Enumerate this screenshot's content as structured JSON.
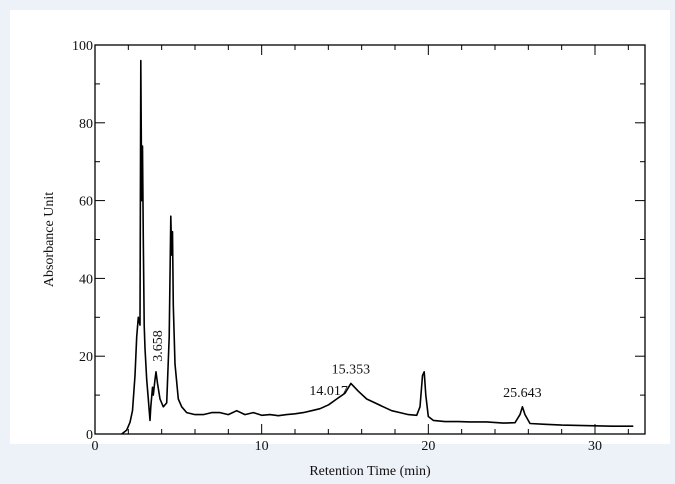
{
  "chart_data": {
    "type": "line",
    "title": "",
    "xlabel": "Retention Time (min)",
    "ylabel": "Absorbance Unit",
    "xlim": [
      0,
      33
    ],
    "ylim": [
      0,
      100
    ],
    "x_ticks": [
      0,
      10,
      20,
      30
    ],
    "y_ticks": [
      0,
      20,
      40,
      60,
      80,
      100
    ],
    "grid": false,
    "legend": "none",
    "line_color": "#000000",
    "background_color": "#ffffff",
    "series": [
      {
        "x": [
          1.6,
          1.9,
          2.1,
          2.25,
          2.4,
          2.5,
          2.6,
          2.7,
          2.75,
          2.8,
          2.85,
          2.9,
          2.95,
          3.0,
          3.1,
          3.2,
          3.3,
          3.35,
          3.45,
          3.5,
          3.6,
          3.658,
          3.75,
          3.9,
          4.1,
          4.3,
          4.45,
          4.55,
          4.6,
          4.65,
          4.7,
          4.8,
          5.0,
          5.2,
          5.5,
          6.0,
          6.5,
          7.0,
          7.5,
          8.0,
          8.5,
          9.0,
          9.5,
          10.0,
          10.5,
          11.0,
          11.5,
          12.0,
          12.5,
          13.0,
          13.5,
          14.017,
          14.5,
          15.0,
          15.353,
          15.8,
          16.3,
          16.8,
          17.3,
          17.8,
          18.3,
          18.8,
          19.3,
          19.5,
          19.65,
          19.75,
          19.85,
          20.0,
          20.3,
          21.0,
          21.8,
          22.5,
          23.5,
          24.5,
          25.2,
          25.5,
          25.643,
          25.8,
          26.1,
          27.0,
          28.0,
          29.0,
          30.0,
          31.0,
          32.0,
          32.3
        ],
        "y": [
          0,
          1,
          3,
          6,
          15,
          25,
          30,
          28,
          96,
          60,
          74,
          50,
          28,
          22,
          14,
          9,
          3.5,
          7,
          12,
          10,
          14,
          16,
          13,
          9,
          7,
          8,
          25,
          56,
          46,
          52,
          33,
          18,
          9,
          7,
          5.5,
          5,
          5,
          5.5,
          5.5,
          5,
          6,
          5,
          5.5,
          4.8,
          5,
          4.7,
          5,
          5.2,
          5.5,
          6,
          6.5,
          7.5,
          9,
          10.5,
          13,
          11,
          9,
          8,
          7,
          6,
          5.5,
          5,
          4.8,
          7,
          15,
          16,
          10,
          4.5,
          3.5,
          3.2,
          3.2,
          3.1,
          3.1,
          2.8,
          2.9,
          5,
          7,
          5,
          2.7,
          2.5,
          2.3,
          2.2,
          2.1,
          2,
          2,
          2
        ]
      }
    ],
    "annotations": [
      {
        "text": "3.658",
        "x": 3.658,
        "rotation": -90
      },
      {
        "text": "14.017",
        "x": 14.017
      },
      {
        "text": "15.353",
        "x": 15.353
      },
      {
        "text": "25.643",
        "x": 25.643
      }
    ]
  }
}
